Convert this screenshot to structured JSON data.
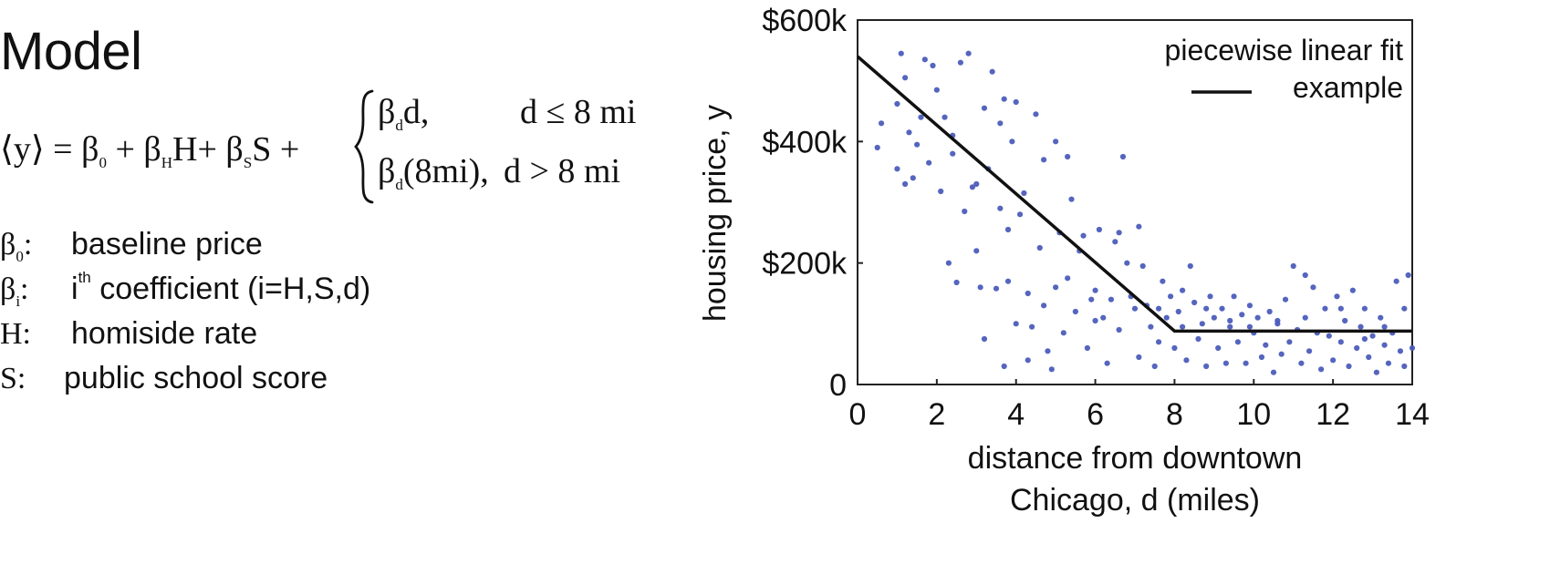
{
  "left": {
    "title": "Model",
    "equation": {
      "lhs": "⟨y⟩",
      "equals": " = ",
      "beta": "β",
      "sub0": "0",
      "plus": " + ",
      "subH": "H",
      "H": "H",
      "plus_plain": "+ ",
      "subS": "S",
      "S": "S",
      "plus_end": " +",
      "brace": "{",
      "subd": "d",
      "case1": "d,",
      "case2": "(8mi),",
      "cond1": "d ≤ 8 mi",
      "cond2": "d > 8 mi"
    },
    "definitions": [
      {
        "symbol": "β",
        "sub": "0",
        "colon": ":",
        "text": "baseline price"
      },
      {
        "symbol": "β",
        "sub": "i",
        "colon": ":",
        "sup": "th",
        "text_start": "i",
        "text": " coefficient (i=H,S,d)"
      },
      {
        "symbol": "H:",
        "text": "homiside rate"
      },
      {
        "symbol": "S:",
        "text": "public school score"
      }
    ]
  },
  "chart_data": {
    "type": "scatter",
    "title": "",
    "xlabel_line1": "distance from downtown",
    "xlabel_line2": "Chicago, d (miles)",
    "ylabel": "housing price, y",
    "xlim": [
      0,
      14
    ],
    "ylim": [
      0,
      600000
    ],
    "x_ticks": [
      0,
      2,
      4,
      6,
      8,
      10,
      12,
      14
    ],
    "x_tick_labels": [
      "0",
      "2",
      "4",
      "6",
      "8",
      "10",
      "12",
      "14"
    ],
    "y_ticks": [
      0,
      200000,
      400000,
      600000
    ],
    "y_tick_labels": [
      "0",
      "$200k",
      "$400k",
      "$600k"
    ],
    "legend": {
      "title": "piecewise linear fit",
      "entry": "example",
      "placement": "top-right"
    },
    "colors": {
      "points": "#4658b8",
      "fit_line": "#111111",
      "axis": "#222222"
    },
    "fit_line": {
      "name": "example",
      "points": [
        [
          0,
          540000
        ],
        [
          8,
          88000
        ],
        [
          14,
          88000
        ]
      ]
    },
    "points": [
      [
        0.5,
        390000
      ],
      [
        0.6,
        430000
      ],
      [
        1.0,
        355000
      ],
      [
        1.0,
        462000
      ],
      [
        1.1,
        545000
      ],
      [
        1.2,
        330000
      ],
      [
        1.3,
        415000
      ],
      [
        1.4,
        340000
      ],
      [
        1.5,
        395000
      ],
      [
        1.6,
        440000
      ],
      [
        1.7,
        535000
      ],
      [
        1.8,
        365000
      ],
      [
        1.9,
        525000
      ],
      [
        2.0,
        485000
      ],
      [
        2.1,
        318000
      ],
      [
        2.2,
        440000
      ],
      [
        2.3,
        200000
      ],
      [
        2.4,
        410000
      ],
      [
        2.5,
        168000
      ],
      [
        2.6,
        530000
      ],
      [
        2.7,
        285000
      ],
      [
        2.8,
        545000
      ],
      [
        2.9,
        325000
      ],
      [
        3.0,
        330000
      ],
      [
        3.1,
        160000
      ],
      [
        3.2,
        455000
      ],
      [
        3.2,
        75000
      ],
      [
        3.3,
        355000
      ],
      [
        3.4,
        515000
      ],
      [
        3.5,
        158000
      ],
      [
        3.6,
        430000
      ],
      [
        3.6,
        290000
      ],
      [
        3.7,
        470000
      ],
      [
        3.7,
        30000
      ],
      [
        3.8,
        170000
      ],
      [
        3.9,
        400000
      ],
      [
        4.0,
        465000
      ],
      [
        4.0,
        100000
      ],
      [
        4.1,
        280000
      ],
      [
        4.2,
        315000
      ],
      [
        4.3,
        150000
      ],
      [
        4.3,
        40000
      ],
      [
        4.4,
        95000
      ],
      [
        4.5,
        445000
      ],
      [
        4.6,
        225000
      ],
      [
        4.7,
        370000
      ],
      [
        4.8,
        55000
      ],
      [
        4.9,
        25000
      ],
      [
        5.0,
        400000
      ],
      [
        5.0,
        160000
      ],
      [
        5.1,
        250000
      ],
      [
        5.2,
        85000
      ],
      [
        5.3,
        375000
      ],
      [
        5.4,
        305000
      ],
      [
        5.5,
        120000
      ],
      [
        5.6,
        220000
      ],
      [
        5.7,
        245000
      ],
      [
        5.8,
        60000
      ],
      [
        5.9,
        140000
      ],
      [
        6.0,
        155000
      ],
      [
        6.1,
        255000
      ],
      [
        6.2,
        110000
      ],
      [
        6.3,
        35000
      ],
      [
        6.4,
        140000
      ],
      [
        6.5,
        235000
      ],
      [
        6.6,
        90000
      ],
      [
        6.7,
        375000
      ],
      [
        6.8,
        200000
      ],
      [
        6.9,
        145000
      ],
      [
        7.0,
        125000
      ],
      [
        7.1,
        45000
      ],
      [
        7.2,
        195000
      ],
      [
        7.3,
        130000
      ],
      [
        7.4,
        95000
      ],
      [
        7.5,
        30000
      ],
      [
        7.6,
        125000
      ],
      [
        7.7,
        170000
      ],
      [
        7.8,
        110000
      ],
      [
        7.9,
        145000
      ],
      [
        8.0,
        60000
      ],
      [
        8.1,
        120000
      ],
      [
        8.2,
        95000
      ],
      [
        8.3,
        40000
      ],
      [
        8.4,
        195000
      ],
      [
        8.5,
        135000
      ],
      [
        8.6,
        75000
      ],
      [
        8.7,
        100000
      ],
      [
        8.8,
        30000
      ],
      [
        8.9,
        145000
      ],
      [
        9.0,
        110000
      ],
      [
        9.1,
        60000
      ],
      [
        9.2,
        125000
      ],
      [
        9.3,
        35000
      ],
      [
        9.4,
        95000
      ],
      [
        9.5,
        145000
      ],
      [
        9.6,
        70000
      ],
      [
        9.7,
        115000
      ],
      [
        9.8,
        35000
      ],
      [
        9.9,
        130000
      ],
      [
        10.0,
        85000
      ],
      [
        10.1,
        110000
      ],
      [
        10.2,
        45000
      ],
      [
        10.3,
        65000
      ],
      [
        10.4,
        120000
      ],
      [
        10.5,
        20000
      ],
      [
        10.6,
        100000
      ],
      [
        10.7,
        50000
      ],
      [
        10.8,
        140000
      ],
      [
        10.9,
        70000
      ],
      [
        11.0,
        195000
      ],
      [
        11.1,
        90000
      ],
      [
        11.2,
        35000
      ],
      [
        11.3,
        110000
      ],
      [
        11.4,
        55000
      ],
      [
        11.5,
        160000
      ],
      [
        11.6,
        85000
      ],
      [
        11.7,
        25000
      ],
      [
        11.8,
        125000
      ],
      [
        11.9,
        80000
      ],
      [
        12.0,
        40000
      ],
      [
        12.1,
        145000
      ],
      [
        12.2,
        70000
      ],
      [
        12.3,
        105000
      ],
      [
        12.4,
        30000
      ],
      [
        12.5,
        155000
      ],
      [
        12.6,
        60000
      ],
      [
        12.7,
        95000
      ],
      [
        12.8,
        125000
      ],
      [
        12.9,
        45000
      ],
      [
        13.0,
        80000
      ],
      [
        13.1,
        20000
      ],
      [
        13.2,
        110000
      ],
      [
        13.3,
        65000
      ],
      [
        13.4,
        35000
      ],
      [
        13.5,
        85000
      ],
      [
        13.6,
        170000
      ],
      [
        13.7,
        55000
      ],
      [
        13.8,
        30000
      ],
      [
        13.9,
        180000
      ],
      [
        14.0,
        60000
      ],
      [
        1.2,
        505000
      ],
      [
        2.4,
        380000
      ],
      [
        3.0,
        220000
      ],
      [
        3.8,
        255000
      ],
      [
        4.7,
        130000
      ],
      [
        5.3,
        175000
      ],
      [
        6.0,
        105000
      ],
      [
        6.6,
        250000
      ],
      [
        7.1,
        260000
      ],
      [
        7.6,
        70000
      ],
      [
        8.2,
        155000
      ],
      [
        8.8,
        125000
      ],
      [
        9.4,
        105000
      ],
      [
        9.9,
        95000
      ],
      [
        10.6,
        105000
      ],
      [
        11.3,
        180000
      ],
      [
        12.2,
        125000
      ],
      [
        12.8,
        75000
      ],
      [
        13.3,
        95000
      ],
      [
        13.8,
        125000
      ]
    ]
  }
}
